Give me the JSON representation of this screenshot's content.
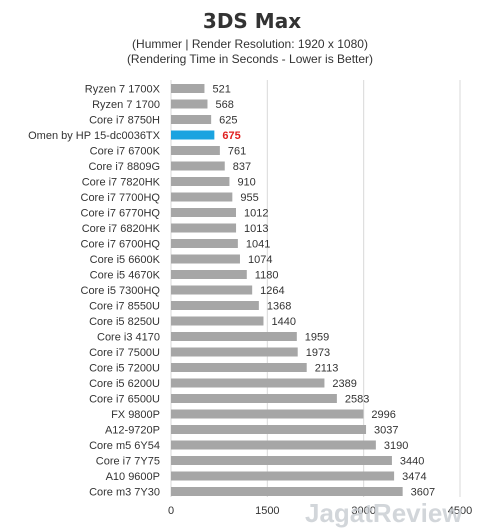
{
  "chart_data": {
    "type": "bar",
    "orientation": "horizontal",
    "title": "3DS Max",
    "subtitle_lines": [
      "(Hummer | Render Resolution: 1920 x 1080)",
      "(Rendering Time in Seconds - Lower is Better)"
    ],
    "categories": [
      "Ryzen 7 1700X",
      "Ryzen 7 1700",
      "Core i7 8750H",
      "Omen by HP 15-dc0036TX",
      "Core i7 6700K",
      "Core i7 8809G",
      "Core i7 7820HK",
      "Core i7 7700HQ",
      "Core i7 6770HQ",
      "Core i7 6820HK",
      "Core i7 6700HQ",
      "Core i5 6600K",
      "Core i5 4670K",
      "Core i5 7300HQ",
      "Core i7 8550U",
      "Core i5 8250U",
      "Core i3 4170",
      "Core i7 7500U",
      "Core i5 7200U",
      "Core i5 6200U",
      "Core i7 6500U",
      "FX 9800P",
      "A12-9720P",
      "Core m5 6Y54",
      "Core i7 7Y75",
      "A10 9600P",
      "Core m3 7Y30"
    ],
    "values": [
      521,
      568,
      625,
      675,
      761,
      837,
      910,
      955,
      1012,
      1013,
      1041,
      1074,
      1180,
      1264,
      1368,
      1440,
      1959,
      1973,
      2113,
      2389,
      2583,
      2996,
      3037,
      3190,
      3440,
      3474,
      3607
    ],
    "highlight_index": 3,
    "xlim": [
      0,
      4500
    ],
    "xticks": [
      0,
      1500,
      3000,
      4500
    ],
    "grid": true,
    "colors": {
      "bar": "#a6a6a6",
      "highlight": "#1aa3e0",
      "highlight_text": "#e02020",
      "grid": "#d9d9d9"
    }
  },
  "watermark": {
    "brand": "JagatReview"
  }
}
